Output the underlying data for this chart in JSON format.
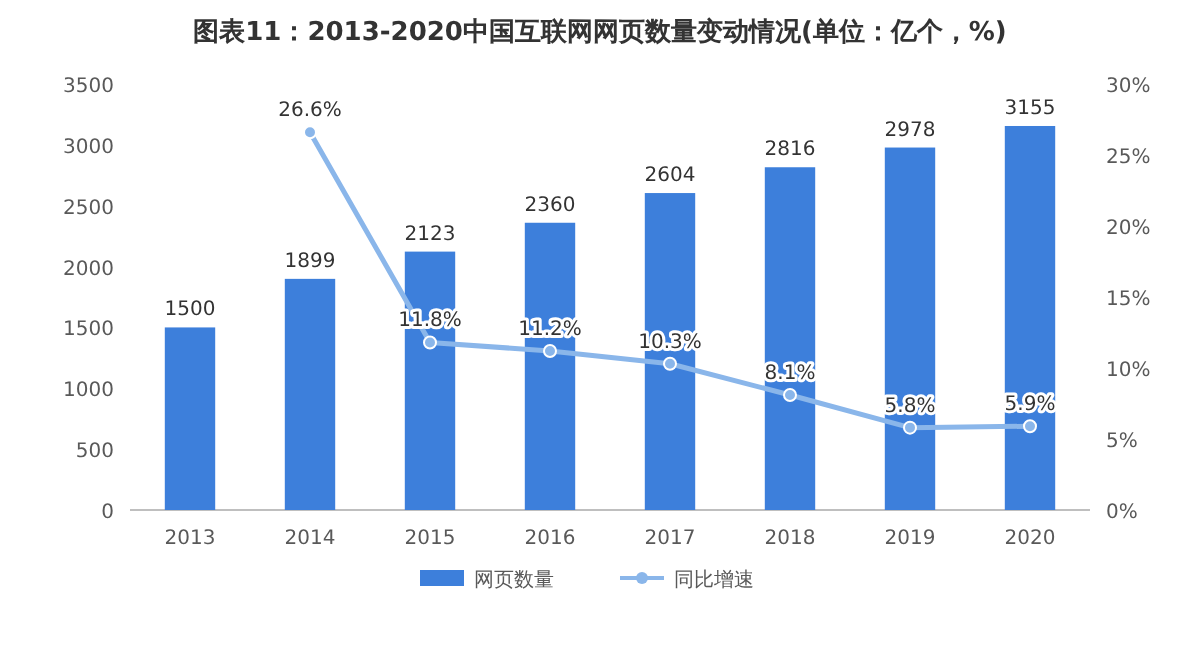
{
  "chart_data": {
    "type": "bar",
    "title": "图表11：2013-2020中国互联网网页数量变动情况(单位：亿个，%)",
    "categories": [
      "2013",
      "2014",
      "2015",
      "2016",
      "2017",
      "2018",
      "2019",
      "2020"
    ],
    "series": [
      {
        "name": "网页数量",
        "color": "#3d7fdb",
        "values": [
          1500,
          1899,
          2123,
          2360,
          2604,
          2816,
          2978,
          3155
        ]
      },
      {
        "name": "同比增速",
        "type": "line",
        "axis": "y2",
        "color": "#8ab6ea",
        "marker": "circle",
        "values": [
          null,
          26.6,
          11.8,
          11.2,
          10.3,
          8.1,
          5.8,
          5.9
        ],
        "value_labels": [
          null,
          "26.6%",
          "11.8%",
          "11.2%",
          "10.3%",
          "8.1%",
          "5.8%",
          "5.9%"
        ]
      }
    ],
    "ylim": [
      0,
      3500
    ],
    "yticks": [
      0,
      500,
      1000,
      1500,
      2000,
      2500,
      3000,
      3500
    ],
    "y2lim": [
      0,
      30
    ],
    "y2ticks": [
      {
        "value": 0,
        "label": "0%"
      },
      {
        "value": 5,
        "label": "5%"
      },
      {
        "value": 10,
        "label": "10%"
      },
      {
        "value": 15,
        "label": "15%"
      },
      {
        "value": 20,
        "label": "20%"
      },
      {
        "value": 25,
        "label": "25%"
      },
      {
        "value": 30,
        "label": "30%"
      }
    ],
    "data_labels": true,
    "legend": "bottom"
  }
}
